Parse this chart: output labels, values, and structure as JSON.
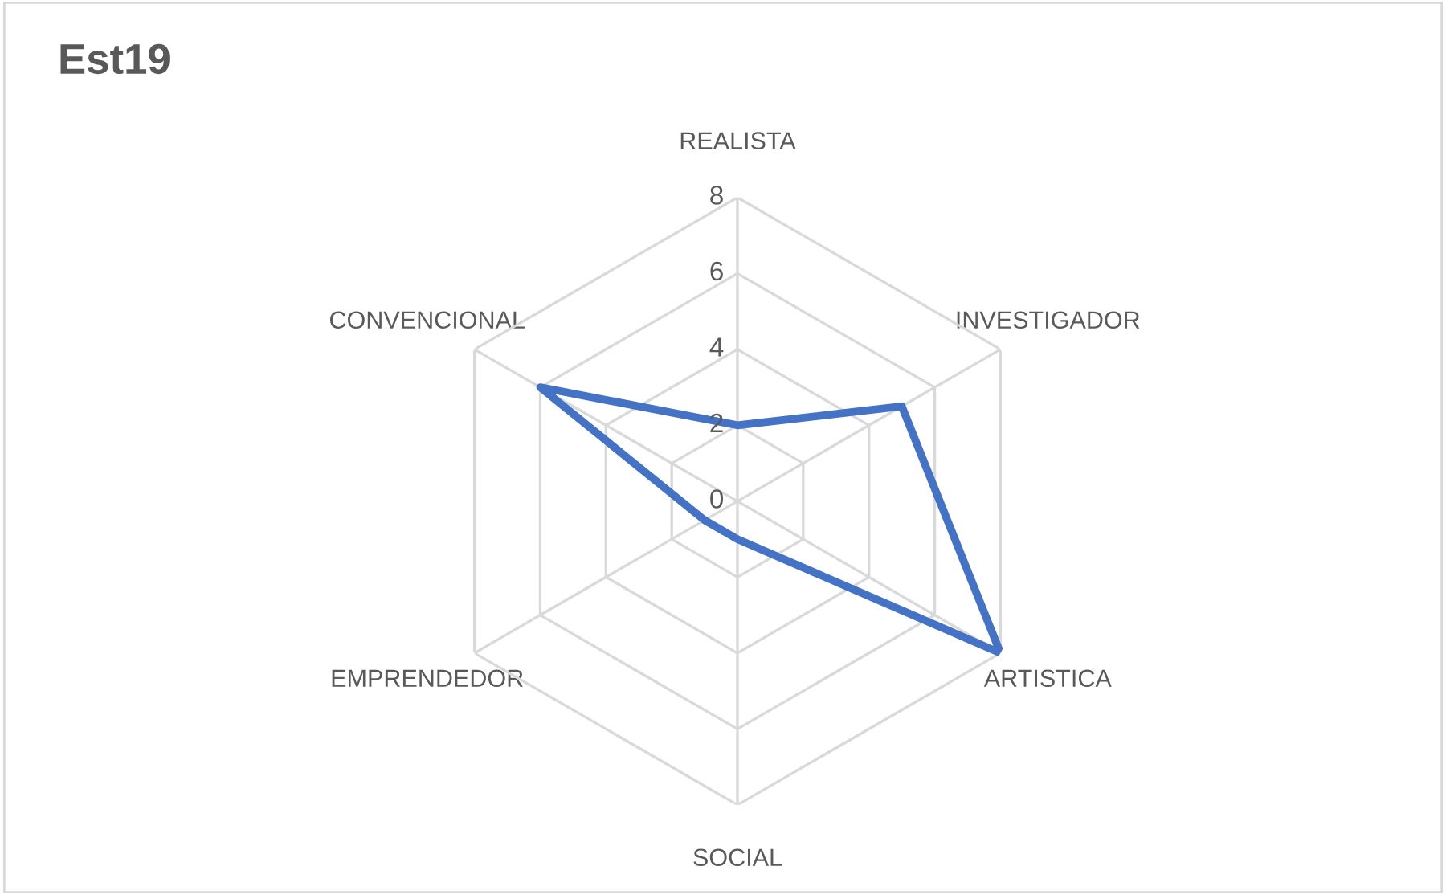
{
  "chart_data": {
    "type": "radar",
    "title": "Est19",
    "categories": [
      "REALISTA",
      "INVESTIGADOR",
      "ARTISTICA",
      "SOCIAL",
      "EMPRENDEDOR",
      "CONVENCIONAL"
    ],
    "series": [
      {
        "color": "#4472c4",
        "values": [
          2,
          5,
          8,
          1,
          1,
          6
        ]
      }
    ],
    "ylim": [
      0,
      8
    ],
    "yticks": [
      0,
      2,
      4,
      6,
      8
    ],
    "grid": true,
    "marker": "none",
    "line_style": "solid"
  }
}
